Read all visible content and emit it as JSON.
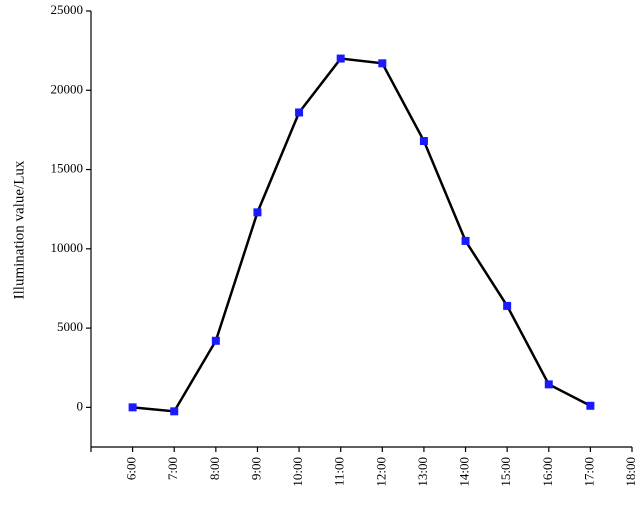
{
  "chart_data": {
    "type": "line",
    "y_label": "Illumination value/Lux",
    "categories": [
      "6:00",
      "7:00",
      "8:00",
      "9:00",
      "10:00",
      "11:00",
      "12:00",
      "13:00",
      "14:00",
      "15:00",
      "16:00",
      "17:00",
      "18:00"
    ],
    "values": [
      0,
      -250,
      4200,
      12300,
      18600,
      22000,
      21700,
      16800,
      10500,
      6400,
      1450,
      100,
      null
    ],
    "color": "#000000",
    "marker_color": "#1a1aff",
    "ylim": [
      -2500,
      25000
    ],
    "yticks": [
      0,
      5000,
      10000,
      15000,
      20000,
      25000
    ]
  }
}
